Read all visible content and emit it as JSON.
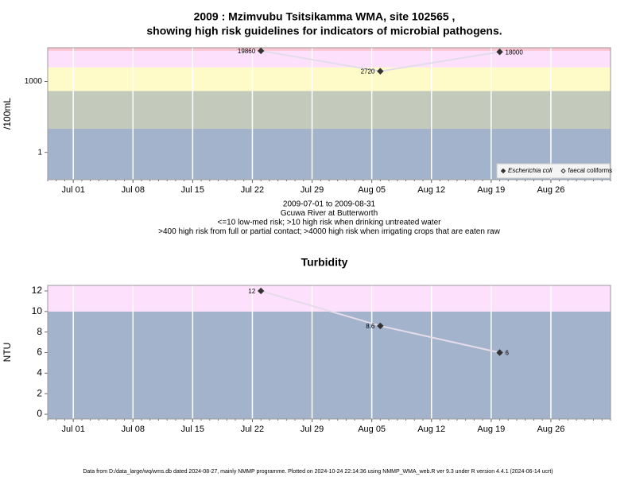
{
  "chart_data": [
    {
      "type": "line",
      "title": [
        "2009 : Mzimvubu Tsitsikamma WMA, site 102565 ,",
        "showing high risk guidelines for indicators of microbial pathogens."
      ],
      "ylabel": "/100mL",
      "log": true,
      "x": [
        "2009-07-23",
        "2009-08-06",
        "2009-08-20"
      ],
      "series": [
        {
          "name": "Escherichia coli",
          "color": "#333333",
          "marker": "filled",
          "values": [
            19860,
            2720,
            18000
          ]
        },
        {
          "name": "faecal coliforms",
          "color": "#333333",
          "marker": "open",
          "values": [
            null,
            null,
            null
          ]
        }
      ],
      "line_color": "#e4dcea",
      "xlim": [
        "2009-06-28",
        "2009-09-02"
      ],
      "xticks": [
        {
          "value": "2009-07-01",
          "label": "Jul 01"
        },
        {
          "value": "2009-07-08",
          "label": "Jul 08"
        },
        {
          "value": "2009-07-15",
          "label": "Jul 15"
        },
        {
          "value": "2009-07-22",
          "label": "Jul 22"
        },
        {
          "value": "2009-07-29",
          "label": "Jul 29"
        },
        {
          "value": "2009-08-05",
          "label": "Aug 05"
        },
        {
          "value": "2009-08-12",
          "label": "Aug 12"
        },
        {
          "value": "2009-08-19",
          "label": "Aug 19"
        },
        {
          "value": "2009-08-26",
          "label": "Aug 26"
        }
      ],
      "ylim": [
        0.07,
        27000
      ],
      "yticks": [
        1,
        1000
      ],
      "bands": [
        {
          "from": 0.07,
          "to": 10,
          "color": "#a3b3cc"
        },
        {
          "from": 10,
          "to": 400,
          "color": "#c3cabb"
        },
        {
          "from": 400,
          "to": 4000,
          "color": "#fefbc8"
        },
        {
          "from": 4000,
          "to": 20000,
          "color": "#fde0fb"
        },
        {
          "from": 20000,
          "to": 27000,
          "color": "#f9c3d2"
        }
      ],
      "grid": "x",
      "legend": "bottom-right",
      "notes": [
        "2009-07-01 to 2009-08-31",
        "Gcuwa River at Butterworth",
        "<=10 low-med risk; >10 high risk when drinking untreated water",
        ">400 high risk from full or partial contact; >4000 high risk when irrigating crops that are eaten raw"
      ]
    },
    {
      "type": "line",
      "title": [
        "Turbidity"
      ],
      "ylabel": "NTU",
      "log": false,
      "x": [
        "2009-07-23",
        "2009-08-06",
        "2009-08-20"
      ],
      "series": [
        {
          "name": "Turbidity",
          "color": "#333333",
          "marker": "filled",
          "values": [
            12,
            8.6,
            6
          ]
        }
      ],
      "line_color": "#e4dcea",
      "xlim": [
        "2009-06-28",
        "2009-09-02"
      ],
      "xticks": [
        {
          "value": "2009-07-01",
          "label": "Jul 01"
        },
        {
          "value": "2009-07-08",
          "label": "Jul 08"
        },
        {
          "value": "2009-07-15",
          "label": "Jul 15"
        },
        {
          "value": "2009-07-22",
          "label": "Jul 22"
        },
        {
          "value": "2009-07-29",
          "label": "Jul 29"
        },
        {
          "value": "2009-08-05",
          "label": "Aug 05"
        },
        {
          "value": "2009-08-12",
          "label": "Aug 12"
        },
        {
          "value": "2009-08-19",
          "label": "Aug 19"
        },
        {
          "value": "2009-08-26",
          "label": "Aug 26"
        }
      ],
      "ylim": [
        -0.46,
        12.54
      ],
      "yticks": [
        0,
        2,
        4,
        6,
        8,
        10,
        12
      ],
      "bands": [
        {
          "from": -0.46,
          "to": 10,
          "color": "#a3b3cc"
        },
        {
          "from": 10,
          "to": 12.54,
          "color": "#fde0fb"
        }
      ],
      "grid": "x"
    }
  ],
  "footer": "Data from D:/data_large/wq/wms.db dated 2024-08-27, mainly NMMP programme. Plotted on 2024-10-24 22:14:36 using NMMP_WMA_web.R ver 9.3 under R version 4.4.1 (2024-06-14 ucrt)"
}
